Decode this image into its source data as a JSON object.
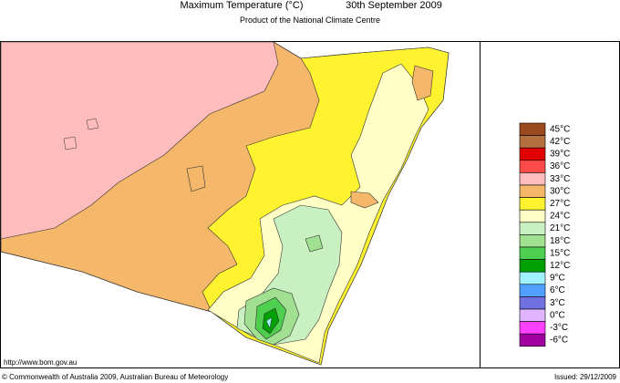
{
  "header": {
    "title": "Maximum Temperature (°C)",
    "date": "30th September 2009",
    "subtitle": "Product of the National Climate Centre"
  },
  "legend": [
    {
      "label": "45°C",
      "color": "#9a4a1c"
    },
    {
      "label": "42°C",
      "color": "#b5703f"
    },
    {
      "label": "39°C",
      "color": "#e00000"
    },
    {
      "label": "36°C",
      "color": "#ff4a4a"
    },
    {
      "label": "33°C",
      "color": "#ffbcbc"
    },
    {
      "label": "30°C",
      "color": "#f5b76a"
    },
    {
      "label": "27°C",
      "color": "#fff22e"
    },
    {
      "label": "24°C",
      "color": "#ffffc6"
    },
    {
      "label": "21°C",
      "color": "#c8f0c0"
    },
    {
      "label": "18°C",
      "color": "#a0e090"
    },
    {
      "label": "15°C",
      "color": "#4fcf4f"
    },
    {
      "label": "12°C",
      "color": "#00a000"
    },
    {
      "label": "9°C",
      "color": "#a0f0ff"
    },
    {
      "label": "6°C",
      "color": "#50a0ff"
    },
    {
      "label": "3°C",
      "color": "#7070e0"
    },
    {
      "label": "0°C",
      "color": "#e0b4ff"
    },
    {
      "label": "-3°C",
      "color": "#ff40ff"
    },
    {
      "label": "-6°C",
      "color": "#a000a0"
    }
  ],
  "footer": {
    "url": "http://www.bom.gov.au",
    "copyright": "© Commonwealth of Australia 2009, Australian Bureau of Meteorology",
    "issued": "Issued: 29/12/2009"
  }
}
